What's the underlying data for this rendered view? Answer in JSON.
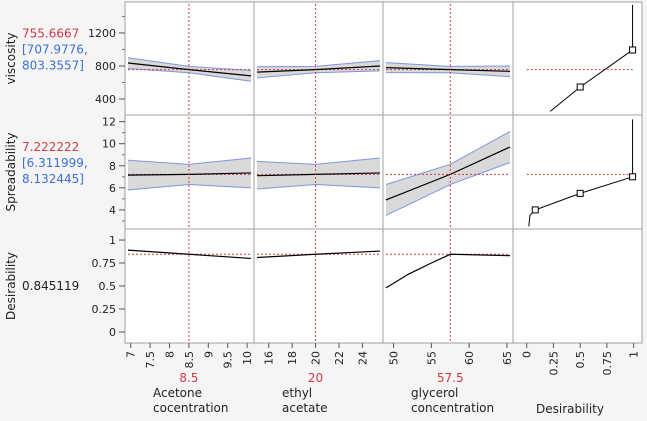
{
  "chart_data": {
    "type": "line",
    "title": "",
    "colors": {
      "current": "#d23a4a",
      "ci_text": "#3b6fd6",
      "band_fill": "#d9d9d9",
      "band_edge": "#7a97e0",
      "line": "#000000",
      "grid": "#a0a0a0"
    },
    "factors": [
      {
        "name_lines": [
          "Acetone",
          "cocentration"
        ],
        "current": "8.5",
        "current_value": 8.5,
        "range": [
          6.93,
          10.1
        ],
        "ticks": [
          7,
          7.5,
          8,
          8.5,
          9,
          9.5,
          10
        ]
      },
      {
        "name_lines": [
          "ethyl",
          "acetate"
        ],
        "current": "20",
        "current_value": 20,
        "range": [
          15,
          25.5
        ],
        "ticks": [
          16,
          18,
          20,
          22,
          24
        ]
      },
      {
        "name_lines": [
          "glycerol",
          "concentration"
        ],
        "current": "57.5",
        "current_value": 57.5,
        "range": [
          49,
          65.4
        ],
        "ticks": [
          50,
          55,
          60,
          65
        ]
      }
    ],
    "desirability_axis": {
      "label": "Desirability",
      "range": [
        -0.1,
        1.05
      ],
      "ticks": [
        "0",
        "0.25",
        "0.5",
        "0.75",
        "1"
      ]
    },
    "responses": [
      {
        "name": "viscosity",
        "prediction": "755.6667",
        "ci_low": "[707.9776,",
        "ci_high": "803.3557]",
        "current_value": 755.6667,
        "range": [
          206,
          1575
        ],
        "ticks": [
          400,
          800,
          1200
        ],
        "minor_ticks": [
          600,
          1000,
          1400
        ],
        "profiles": [
          {
            "x": [
              6.93,
              8.5,
              10.1
            ],
            "y": [
              836,
              756,
              680
            ],
            "lo": [
              770,
              718,
              615
            ],
            "hi": [
              900,
              795,
              745
            ]
          },
          {
            "x": [
              15,
              20,
              25.5
            ],
            "y": [
              725,
              756,
              800
            ],
            "lo": [
              655,
              718,
              740
            ],
            "hi": [
              790,
              795,
              865
            ]
          },
          {
            "x": [
              49,
              57.5,
              65.4
            ],
            "y": [
              780,
              756,
              735
            ],
            "lo": [
              720,
              718,
              670
            ],
            "hi": [
              840,
              795,
              800
            ]
          }
        ],
        "desirability_fn": {
          "y": [
            250,
            545,
            994,
            1540
          ],
          "d": [
            0.22,
            0.5,
            0.99,
            0.99
          ],
          "markers": [
            [
              0.5,
              545
            ],
            [
              0.99,
              994
            ]
          ]
        }
      },
      {
        "name": "Spreadability",
        "prediction": "7.222222",
        "ci_low": "[6.311999,",
        "ci_high": "8.132445]",
        "current_value": 7.222222,
        "range": [
          2.27,
          12.6
        ],
        "ticks": [
          4,
          6,
          8,
          10,
          12
        ],
        "minor_ticks": [
          3,
          5,
          7,
          9,
          11
        ],
        "profiles": [
          {
            "x": [
              6.93,
              8.5,
              10.1
            ],
            "y": [
              7.15,
              7.22,
              7.35
            ],
            "lo": [
              5.8,
              6.3,
              6.0
            ],
            "hi": [
              8.5,
              8.13,
              8.7
            ]
          },
          {
            "x": [
              15,
              20,
              25.5
            ],
            "y": [
              7.1,
              7.22,
              7.35
            ],
            "lo": [
              5.9,
              6.3,
              6.0
            ],
            "hi": [
              8.4,
              8.13,
              8.7
            ]
          },
          {
            "x": [
              49,
              57.5,
              65.4
            ],
            "y": [
              4.9,
              7.22,
              9.7
            ],
            "lo": [
              3.5,
              6.3,
              8.3
            ],
            "hi": [
              6.3,
              8.13,
              11.1
            ]
          }
        ],
        "desirability_fn": {
          "y": [
            2.5,
            3.5,
            4.0,
            5.5,
            7.0,
            12.2
          ],
          "d": [
            0.02,
            0.03,
            0.08,
            0.5,
            0.99,
            0.99
          ],
          "markers": [
            [
              0.08,
              4.0
            ],
            [
              0.5,
              5.5
            ],
            [
              0.99,
              7.0
            ]
          ]
        }
      },
      {
        "name": "Desirability",
        "prediction": "0.845119",
        "current_value": 0.845119,
        "range": [
          -0.12,
          1.12
        ],
        "ticks": [
          "0",
          "0.25",
          "0.5",
          "0.75",
          "1"
        ],
        "tick_values": [
          0,
          0.25,
          0.5,
          0.75,
          1
        ],
        "profiles": [
          {
            "x": [
              6.93,
              8.5,
              10.1
            ],
            "y": [
              0.89,
              0.845,
              0.8
            ]
          },
          {
            "x": [
              15,
              20,
              25.5
            ],
            "y": [
              0.81,
              0.845,
              0.88
            ]
          },
          {
            "x": [
              49,
              52,
              55,
              57.5,
              65.4
            ],
            "y": [
              0.48,
              0.63,
              0.75,
              0.845,
              0.83
            ]
          }
        ]
      }
    ]
  }
}
